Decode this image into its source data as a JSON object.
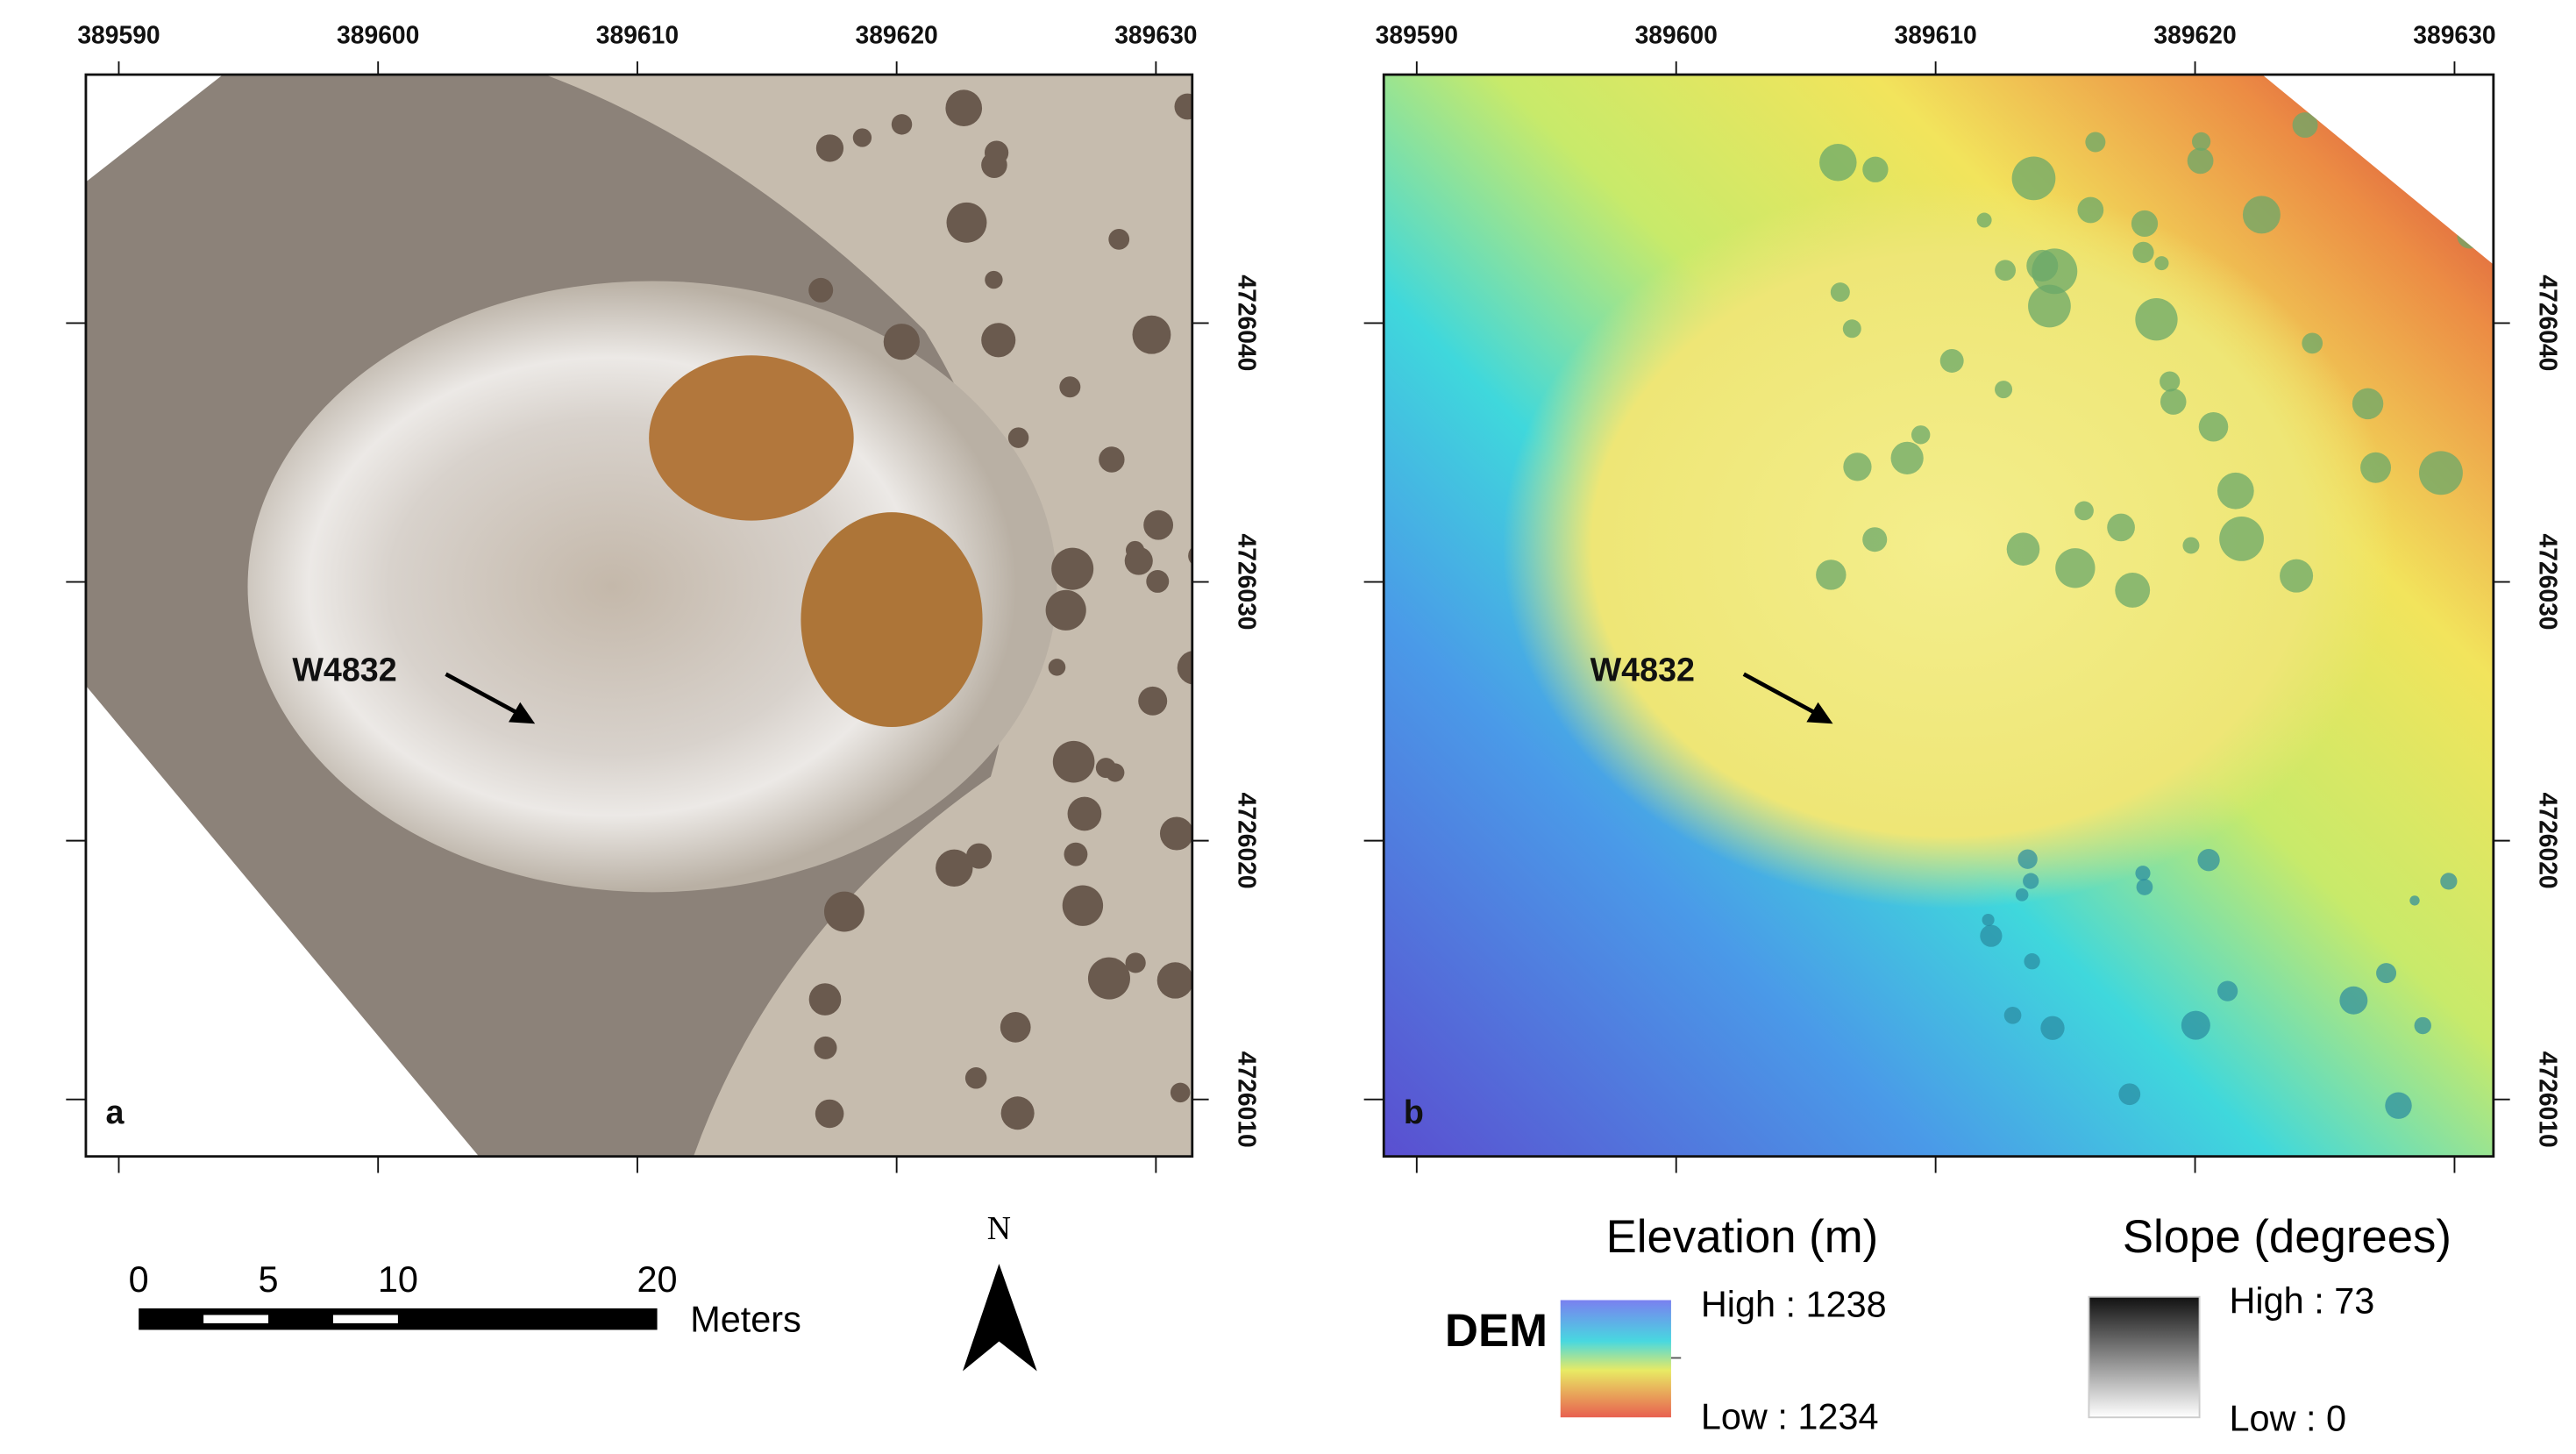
{
  "panels": [
    {
      "label": "a",
      "annotation": "W4832",
      "xlim": [
        389588.73,
        389631.4
      ],
      "ylim": [
        4726007.8,
        4726049.6
      ],
      "xticks": [
        389590,
        389600,
        389610,
        389620,
        389630
      ],
      "yticks": [
        4726010,
        4726020,
        4726030,
        4726040
      ]
    },
    {
      "label": "b",
      "annotation": "W4832",
      "xlim": [
        389588.73,
        389631.5
      ],
      "ylim": [
        4726007.8,
        4726049.6
      ],
      "xticks": [
        389590,
        389600,
        389610,
        389620,
        389630
      ],
      "yticks": [
        4726010,
        4726020,
        4726030,
        4726040
      ]
    }
  ],
  "scale_bar": {
    "ticks": [
      0,
      5,
      10,
      20
    ],
    "unit": "Meters"
  },
  "north_arrow": "N",
  "legend": {
    "dem_label": "DEM",
    "elevation": {
      "title": "Elevation (m)",
      "high": "High : 1238",
      "low": "Low : 1234"
    },
    "slope": {
      "title": "Slope (degrees)",
      "high": "High : 73",
      "low": "Low : 0"
    }
  }
}
